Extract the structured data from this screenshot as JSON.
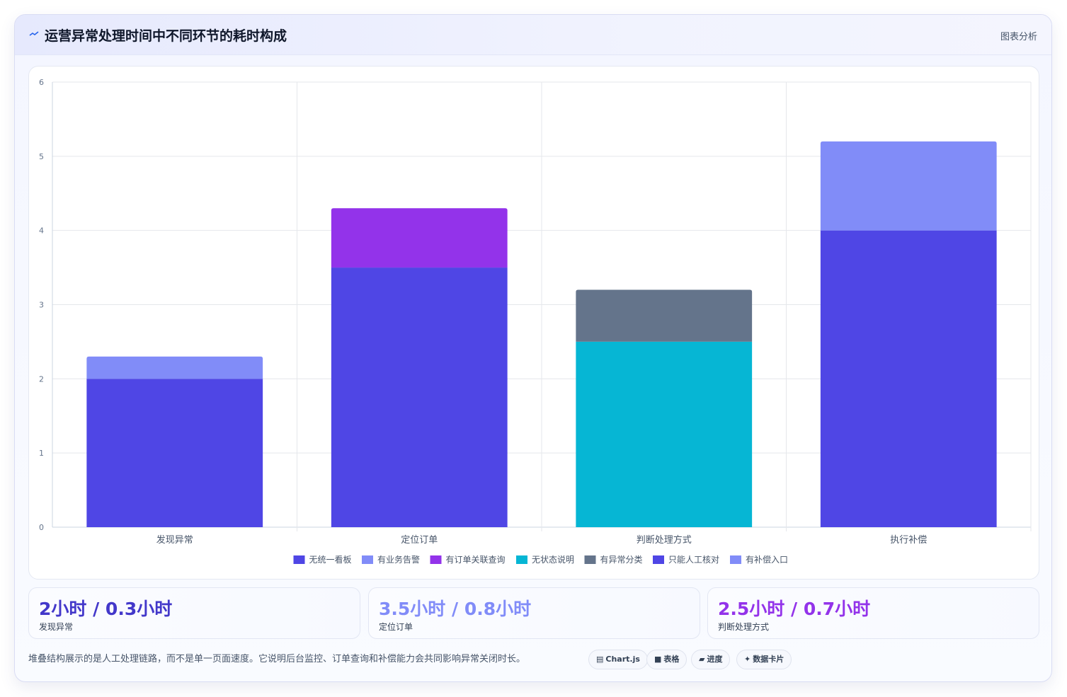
{
  "card": {
    "title": "运营异常处理时间中不同环节的耗时构成",
    "title_icon": "trend-line-icon",
    "header_action": "图表分析"
  },
  "chart_data": {
    "type": "bar",
    "stacked": true,
    "categories": [
      "发现异常",
      "定位订单",
      "判断处理方式",
      "执行补偿"
    ],
    "ylim": [
      0,
      6
    ],
    "yticks": [
      0,
      1,
      2,
      3,
      4,
      5,
      6
    ],
    "grid": true,
    "legend_position": "bottom",
    "series": [
      {
        "name": "无统一看板",
        "color": "#4f46e5",
        "values": [
          2,
          0,
          0,
          0
        ]
      },
      {
        "name": "有业务告警",
        "color": "#818cf8",
        "values": [
          0.3,
          0,
          0,
          0
        ]
      },
      {
        "name": "有订单关联查询",
        "color": "#9333ea",
        "values": [
          0,
          0.8,
          0,
          0
        ]
      },
      {
        "name": "无状态说明",
        "color": "#06b6d4",
        "values": [
          0,
          0,
          2.5,
          0
        ]
      },
      {
        "name": "有异常分类",
        "color": "#64748b",
        "values": [
          0,
          0,
          0.7,
          0
        ]
      },
      {
        "name": "只能人工核对",
        "color": "#4f46e5",
        "values": [
          0,
          0,
          0,
          4
        ]
      },
      {
        "name": "有补偿入口",
        "color": "#818cf8",
        "values": [
          0,
          0,
          0,
          1.2
        ]
      }
    ],
    "extra_stack": {
      "category_index": 1,
      "value": 3.5,
      "color": "#4f46e5"
    }
  },
  "stats": [
    {
      "value": "2小时 / 0.3小时",
      "label": "发现异常",
      "color": "#4338ca"
    },
    {
      "value": "3.5小时 / 0.8小时",
      "label": "定位订单",
      "color": "#818cf8"
    },
    {
      "value": "2.5小时 / 0.7小时",
      "label": "判断处理方式",
      "color": "#9333ea"
    }
  ],
  "footnote": "堆叠结构展示的是人工处理链路，而不是单一页面速度。它说明后台监控、订单查询和补偿能力会共同影响异常关闭时长。",
  "chips": [
    {
      "icon": "chart-icon",
      "glyph": "▤",
      "label": "Chart.js"
    },
    {
      "icon": "table-icon",
      "glyph": "■",
      "label": "表格"
    },
    {
      "icon": "progress-icon",
      "glyph": "▰",
      "label": "进度"
    },
    {
      "icon": "sparkle-icon",
      "glyph": "✦",
      "label": "数据卡片"
    }
  ]
}
